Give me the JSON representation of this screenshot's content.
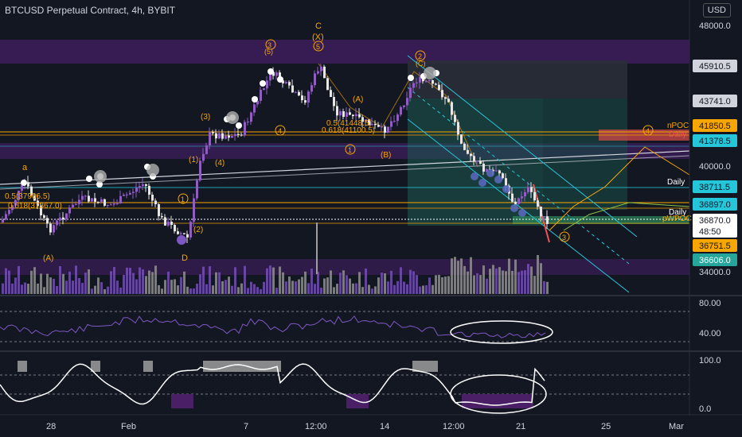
{
  "header": {
    "title": "BTCUSD Perpetual Contract, 4h, BYBIT",
    "currency": "USD"
  },
  "price_axis": {
    "ticks": [
      "48000.0",
      "40000.0",
      "34000.0"
    ],
    "labels": [
      {
        "text": "45910.5",
        "bg": "#d1d4dc",
        "fg": "#131722"
      },
      {
        "text": "43741.0",
        "bg": "#d1d4dc",
        "fg": "#131722"
      },
      {
        "text": "41850.5",
        "bg": "#f7a600",
        "fg": "#131722"
      },
      {
        "text": "41378.5",
        "bg": "#26c6da",
        "fg": "#131722"
      },
      {
        "text": "38711.5",
        "bg": "#26c6da",
        "fg": "#131722"
      },
      {
        "text": "36897.0",
        "bg": "#26c6da",
        "fg": "#131722"
      },
      {
        "text": "36870.0",
        "bg": "#ffffff",
        "fg": "#131722"
      },
      {
        "text": "48:50",
        "bg": "#ffffff",
        "fg": "#131722"
      },
      {
        "text": "36751.5",
        "bg": "#f7a600",
        "fg": "#131722"
      },
      {
        "text": "36606.0",
        "bg": "#26a69a",
        "fg": "#ffffff"
      }
    ]
  },
  "rsi_axis": {
    "ticks": [
      "80.00",
      "40.00"
    ]
  },
  "stoch_axis": {
    "ticks": [
      "100.0",
      "0.0"
    ]
  },
  "time_axis": {
    "ticks": [
      "28",
      "Feb",
      "7",
      "12:00",
      "14",
      "12:00",
      "21",
      "25",
      "Mar"
    ]
  },
  "annotations": {
    "fib_left_1": "0.5(37906.5)",
    "fib_left_2": "0.618(37367.0)",
    "fib_mid_1": "0.5(41448.5)",
    "fib_mid_2": "0.618(41100.5)",
    "npoc": "nPOC",
    "daily_1": "Daily",
    "daily_2": "Daily",
    "daily_3": "Daily",
    "weekly": "pWPOC"
  },
  "waves": {
    "a": "a",
    "b_top": "(5)",
    "c_top": "C",
    "x_top": "(X)",
    "w5_top": "5",
    "w3_top": "3",
    "w2_mid": "2",
    "w2_c": "(C)",
    "w4_a": "4",
    "w4_b": "(4)",
    "w3_a": "(3)",
    "w2_a": "(2)",
    "w1_a": "(1)",
    "c1": "1",
    "A_mid": "(A)",
    "B_mid": "(B)",
    "A_left": "(A)",
    "D": "D",
    "r3": "3",
    "r4": "4"
  },
  "colors": {
    "bull": "#8e5fbf",
    "bear": "#e6e6e6",
    "band": "#4a1f66",
    "channel": "#26c6da",
    "fib": "#f7a600",
    "zone": "#26a69a"
  }
}
